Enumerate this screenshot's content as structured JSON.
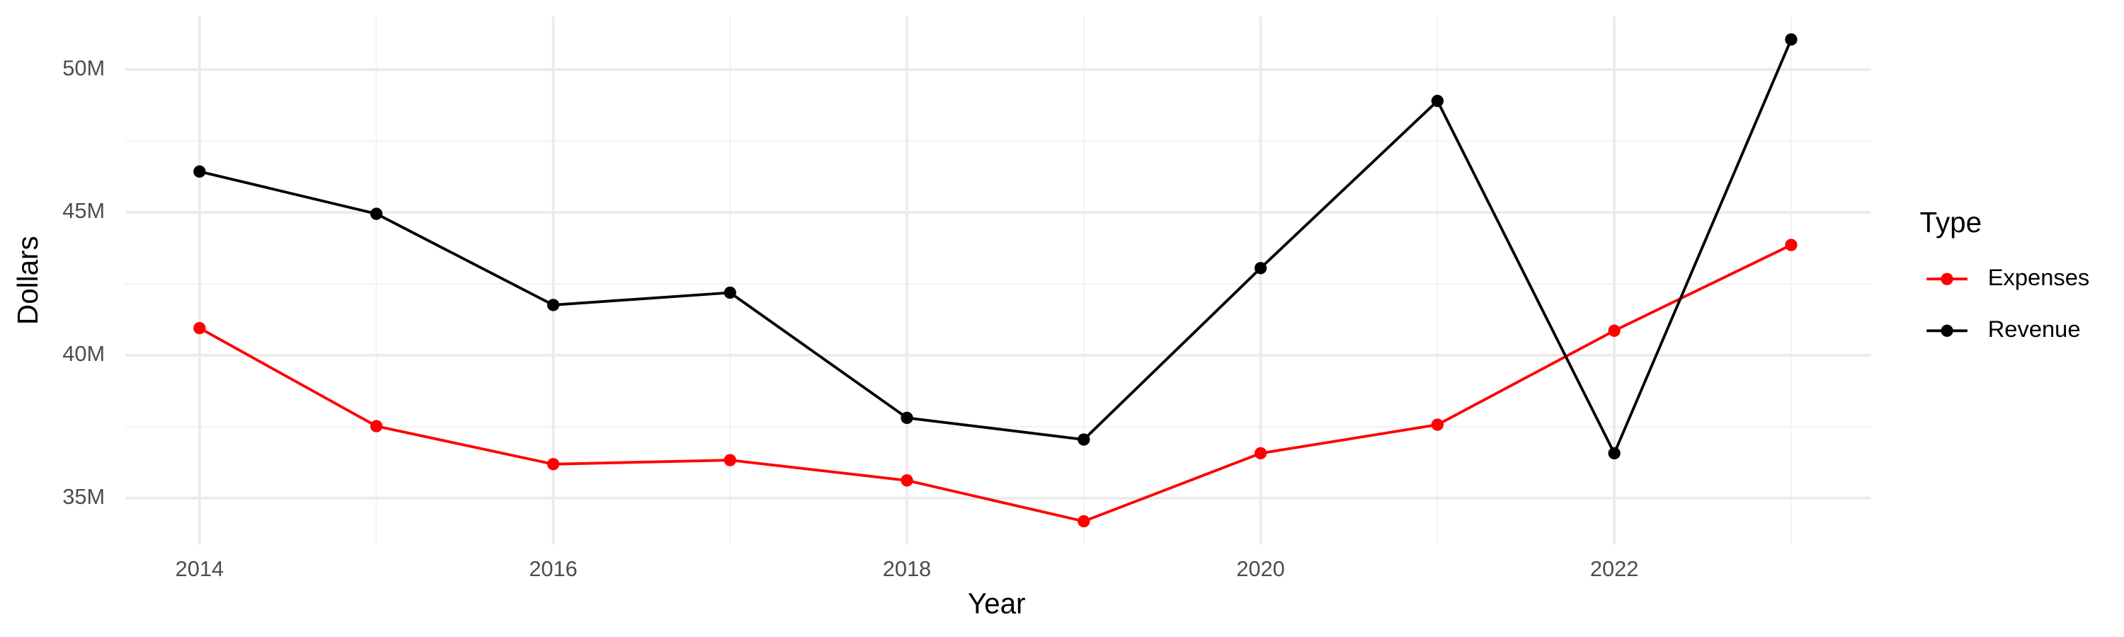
{
  "chart_data": {
    "type": "line",
    "x_label": "Year",
    "y_label": "Dollars",
    "x": [
      2014,
      2015,
      2016,
      2017,
      2018,
      2019,
      2020,
      2021,
      2022,
      2023
    ],
    "xlim": [
      2013.58,
      2023.45
    ],
    "xticks": [
      2014,
      2016,
      2018,
      2020,
      2022
    ],
    "ylim": [
      33380000,
      51860000
    ],
    "yticks": [
      {
        "value": 35000000,
        "label": "35M"
      },
      {
        "value": 40000000,
        "label": "40M"
      },
      {
        "value": 45000000,
        "label": "45M"
      },
      {
        "value": 50000000,
        "label": "50M"
      }
    ],
    "grid": true,
    "legend_title": "Type",
    "legend_position": "right",
    "series": [
      {
        "name": "Expenses",
        "color": "#ff0000",
        "values": [
          40950000,
          37520000,
          36190000,
          36330000,
          35620000,
          34190000,
          36570000,
          37570000,
          40860000,
          43860000
        ]
      },
      {
        "name": "Revenue",
        "color": "#000000",
        "values": [
          46430000,
          44950000,
          41760000,
          42190000,
          37810000,
          37050000,
          43050000,
          48900000,
          36570000,
          51050000
        ]
      }
    ]
  }
}
